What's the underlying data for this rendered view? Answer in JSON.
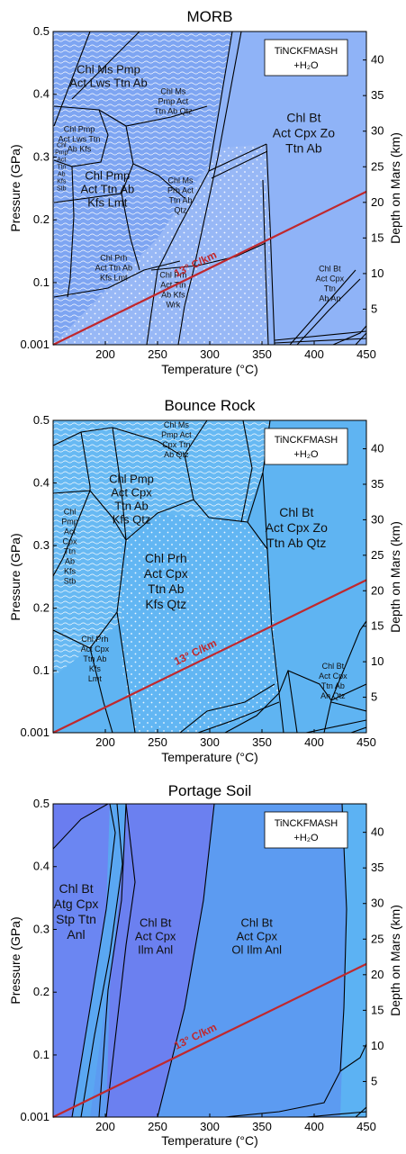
{
  "chart_data": [
    {
      "type": "pseudosection",
      "title": "MORB",
      "xlabel": "Temperature (°C)",
      "ylabel": "Pressure (GPa)",
      "y2label": "Depth on Mars (km)",
      "xlim": [
        150,
        450
      ],
      "ylim": [
        0.001,
        0.5
      ],
      "y2lim": [
        0,
        44
      ],
      "x_ticks": [
        "200",
        "250",
        "300",
        "350",
        "400",
        "450"
      ],
      "y_ticks": [
        "0.001",
        "0.1",
        "0.2",
        "0.3",
        "0.4",
        "0.5"
      ],
      "y2_ticks": [
        "5",
        "10",
        "15",
        "20",
        "25",
        "30",
        "35",
        "40"
      ],
      "system_label": "TiNCKFMASH",
      "system_label2": "+H₂O",
      "gradient_label": "13° C/km",
      "gradient_line": {
        "x": [
          150,
          450
        ],
        "y": [
          0.001,
          0.245
        ]
      },
      "fields": [
        {
          "lines": [
            "Chl Ms Pmp",
            "Act Lws Ttn Ab"
          ],
          "T": 203,
          "P": 0.43,
          "size": "mid"
        },
        {
          "lines": [
            "Chl Ms",
            "Pmp Act",
            "Ttn Ab Qtz"
          ],
          "T": 265,
          "P": 0.39,
          "size": "small"
        },
        {
          "lines": [
            "Chl Bt",
            "Act Cpx Zo",
            "Ttn Ab"
          ],
          "T": 390,
          "P": 0.34,
          "size": "big"
        },
        {
          "lines": [
            "Chl Pmp",
            "Act Lws Ttn",
            "Ab Kfs"
          ],
          "T": 175,
          "P": 0.33,
          "size": "small"
        },
        {
          "lines": [
            "Chl",
            "Pmp",
            "Act",
            "Ttn",
            "Ab",
            "Kfs",
            "Stb"
          ],
          "T": 158,
          "P": 0.285,
          "size": "tiny"
        },
        {
          "lines": [
            "Chl Pmp",
            "Act Ttn Ab",
            "Kfs Lmt"
          ],
          "T": 202,
          "P": 0.25,
          "size": "mid"
        },
        {
          "lines": [
            "Chl Ms",
            "Prh Act",
            "Ttn Ab",
            "Qtz"
          ],
          "T": 272,
          "P": 0.24,
          "size": "small"
        },
        {
          "lines": [
            "Chl Prh",
            "Act Ttn Ab",
            "Kfs Lmt"
          ],
          "T": 208,
          "P": 0.125,
          "size": "small"
        },
        {
          "lines": [
            "Chl Prh",
            "Act Ttn",
            "Ab Kfs",
            "Wrk"
          ],
          "T": 265,
          "P": 0.09,
          "size": "small"
        },
        {
          "lines": [
            "Chl Bt",
            "Act Cpx",
            "Ttn",
            "Ab An"
          ],
          "T": 415,
          "P": 0.1,
          "size": "small"
        }
      ]
    },
    {
      "type": "pseudosection",
      "title": "Bounce Rock",
      "xlabel": "Temperature (°C)",
      "ylabel": "Pressure (GPa)",
      "y2label": "Depth on Mars (km)",
      "xlim": [
        150,
        450
      ],
      "ylim": [
        0.001,
        0.5
      ],
      "y2lim": [
        0,
        44
      ],
      "x_ticks": [
        "200",
        "250",
        "300",
        "350",
        "400",
        "450"
      ],
      "y_ticks": [
        "0.001",
        "0.1",
        "0.2",
        "0.3",
        "0.4",
        "0.5"
      ],
      "y2_ticks": [
        "5",
        "10",
        "15",
        "20",
        "25",
        "30",
        "35",
        "40"
      ],
      "system_label": "TiNCKFMASH",
      "system_label2": "+H₂O",
      "gradient_label": "13° C/km",
      "gradient_line": {
        "x": [
          150,
          450
        ],
        "y": [
          0.001,
          0.245
        ]
      },
      "fields": [
        {
          "lines": [
            "Chl Ms",
            "Pmp Act",
            "Cpx Ttn",
            "Ab Qtz"
          ],
          "T": 268,
          "P": 0.47,
          "size": "small"
        },
        {
          "lines": [
            "Chl Pmp",
            "Act Cpx",
            "Ttn Ab",
            "Kfs Qtz"
          ],
          "T": 225,
          "P": 0.375,
          "size": "mid"
        },
        {
          "lines": [
            "Chl Bt",
            "Act Cpx Zo",
            "Ttn Ab Qtz"
          ],
          "T": 383,
          "P": 0.33,
          "size": "big"
        },
        {
          "lines": [
            "Chl",
            "Pmp",
            "Act",
            "Cpx",
            "Ttn",
            "Ab",
            "Kfs",
            "Stb"
          ],
          "T": 166,
          "P": 0.3,
          "size": "small"
        },
        {
          "lines": [
            "Chl Prh",
            "Act Cpx",
            "Ttn Ab",
            "Kfs Qtz"
          ],
          "T": 258,
          "P": 0.245,
          "size": "big"
        },
        {
          "lines": [
            "Chl Prh",
            "Act Cpx",
            "Ttn Ab",
            "Kfs",
            "Lmt"
          ],
          "T": 190,
          "P": 0.12,
          "size": "small"
        },
        {
          "lines": [
            "Chl Bt",
            "Act Cpx",
            "Ttn Ab",
            "An Qtz"
          ],
          "T": 418,
          "P": 0.085,
          "size": "small"
        }
      ]
    },
    {
      "type": "pseudosection",
      "title": "Portage Soil",
      "xlabel": "Temperature (°C)",
      "ylabel": "Pressure (GPa)",
      "y2label": "Depth on Mars (km)",
      "xlim": [
        150,
        450
      ],
      "ylim": [
        0.001,
        0.5
      ],
      "y2lim": [
        0,
        44
      ],
      "x_ticks": [
        "200",
        "250",
        "300",
        "350",
        "400",
        "450"
      ],
      "y_ticks": [
        "0.001",
        "0.1",
        "0.2",
        "0.3",
        "0.4",
        "0.5"
      ],
      "y2_ticks": [
        "5",
        "10",
        "15",
        "20",
        "25",
        "30",
        "35",
        "40"
      ],
      "system_label": "TiNCKFMASH",
      "system_label2": "+H₂O",
      "gradient_label": "13° C/km",
      "gradient_line": {
        "x": [
          150,
          450
        ],
        "y": [
          0.001,
          0.245
        ]
      },
      "fields": [
        {
          "lines": [
            "Chl Bt",
            "Atg Cpx",
            "Stp Ttn",
            "Anl"
          ],
          "T": 172,
          "P": 0.33,
          "size": "big"
        },
        {
          "lines": [
            "Chl Bt",
            "Act Cpx",
            "Ilm Anl"
          ],
          "T": 248,
          "P": 0.29,
          "size": "mid"
        },
        {
          "lines": [
            "Chl Bt",
            "Act Cpx",
            "Ol Ilm Anl"
          ],
          "T": 345,
          "P": 0.29,
          "size": "mid"
        }
      ]
    }
  ]
}
